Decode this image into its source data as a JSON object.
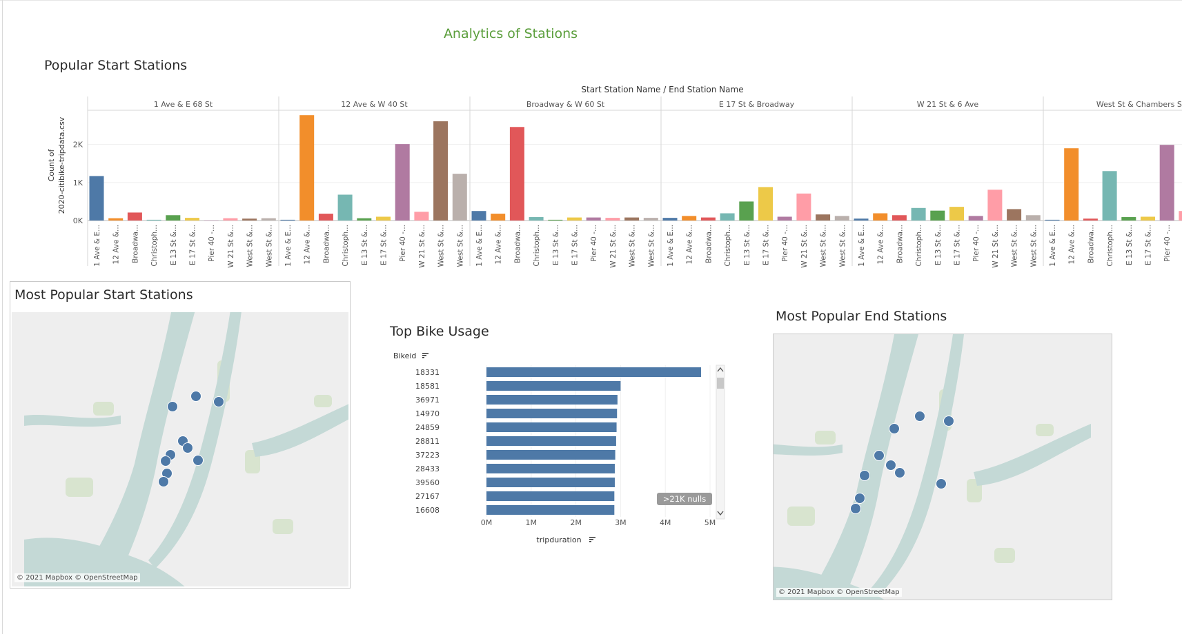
{
  "dashboard": {
    "title": "Analytics of Stations"
  },
  "popular_start": {
    "title": "Popular Start Stations"
  },
  "map_start": {
    "title": "Most Popular Start Stations",
    "credit": "© 2021 Mapbox © OpenStreetMap"
  },
  "map_end": {
    "title": "Most Popular End Stations",
    "credit": "© 2021 Mapbox © OpenStreetMap"
  },
  "bike_usage": {
    "title": "Top Bike Usage"
  },
  "colors": {
    "blue": "#4e79a7",
    "orange": "#f28e2b",
    "red": "#e15759",
    "teal": "#76b7b2",
    "green": "#59a14f",
    "yellow": "#edc948",
    "purple": "#b07aa1",
    "pink": "#ff9da7",
    "brown": "#9c755f",
    "gray": "#bab0ac",
    "title_green": "#5b9e3c",
    "water": "#c4d9d6",
    "land": "#eeeeee",
    "park": "#d8e4cf",
    "dot": "#4e79a7"
  },
  "chart_data": [
    {
      "type": "bar",
      "title": "",
      "header_label": "Start Station Name / End Station Name",
      "ylabel": "Count of 2020-citibike-tripdata.csv",
      "yticks": [
        "0K",
        "1K",
        "2K"
      ],
      "ylim": [
        0,
        2900
      ],
      "panels": [
        "1 Ave & E 68 St",
        "12 Ave & W 40 St",
        "Broadway & W 60 St",
        "E 17 St & Broadway",
        "W 21 St & 6 Ave",
        "West St & Chambers St"
      ],
      "categories": [
        "1 Ave & E...",
        "12 Ave &...",
        "Broadwa...",
        "Christoph...",
        "E 13 St &...",
        "E 17 St &...",
        "Pier 40 -...",
        "W 21 St &...",
        "West St &...",
        "West St &..."
      ],
      "values": [
        [
          1170,
          60,
          210,
          20,
          140,
          70,
          0,
          60,
          50,
          60
        ],
        [
          20,
          2770,
          180,
          680,
          60,
          100,
          2010,
          230,
          2610,
          1230
        ],
        [
          250,
          180,
          2460,
          90,
          20,
          80,
          80,
          70,
          80,
          70
        ],
        [
          70,
          120,
          80,
          190,
          500,
          880,
          100,
          710,
          160,
          120
        ],
        [
          50,
          190,
          140,
          330,
          260,
          360,
          120,
          810,
          300,
          140
        ],
        [
          20,
          1900,
          50,
          1300,
          90,
          100,
          1990,
          250,
          0,
          0
        ]
      ],
      "visible_categories_last_panel": 8
    },
    {
      "type": "bar",
      "orientation": "horizontal",
      "title": "",
      "category_label": "Bikeid",
      "xlabel": "tripduration",
      "xticks": [
        "0M",
        "1M",
        "2M",
        "3M",
        "4M",
        "5M"
      ],
      "xlim": [
        0,
        5000000
      ],
      "categories": [
        "18331",
        "18581",
        "36971",
        "14970",
        "24859",
        "28811",
        "37223",
        "28433",
        "39560",
        "27167",
        "16608"
      ],
      "values": [
        4800000,
        3000000,
        2930000,
        2920000,
        2910000,
        2900000,
        2880000,
        2870000,
        2870000,
        2860000,
        2860000
      ],
      "nulls_badge": ">21K nulls"
    }
  ]
}
